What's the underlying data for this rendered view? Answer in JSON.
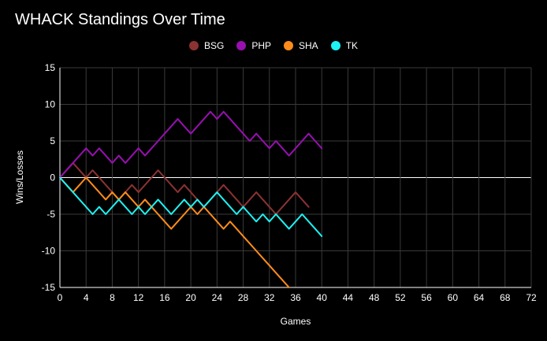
{
  "chart_data": {
    "type": "line",
    "title": "WHACK Standings Over Time",
    "xlabel": "Games",
    "ylabel": "Wins/Losses",
    "xlim": [
      0,
      72
    ],
    "ylim": [
      -15,
      15
    ],
    "xticks": [
      0,
      4,
      8,
      12,
      16,
      20,
      24,
      28,
      32,
      36,
      40,
      44,
      48,
      52,
      56,
      60,
      64,
      68,
      72
    ],
    "yticks": [
      -15,
      -10,
      -5,
      0,
      5,
      10,
      15
    ],
    "legend_position": "top-center",
    "series": [
      {
        "name": "BSG",
        "color": "#8b3232",
        "values": [
          0,
          1,
          2,
          1,
          0,
          1,
          0,
          -1,
          -2,
          -3,
          -2,
          -1,
          -2,
          -1,
          0,
          1,
          0,
          -1,
          -2,
          -1,
          -2,
          -3,
          -4,
          -3,
          -2,
          -1,
          -2,
          -3,
          -4,
          -3,
          -2,
          -3,
          -4,
          -5,
          -4,
          -3,
          -2,
          -3,
          -4
        ]
      },
      {
        "name": "PHP",
        "color": "#9810b0",
        "values": [
          0,
          1,
          2,
          3,
          4,
          3,
          4,
          3,
          2,
          3,
          2,
          3,
          4,
          3,
          4,
          5,
          6,
          7,
          8,
          7,
          6,
          7,
          8,
          9,
          8,
          9,
          8,
          7,
          6,
          5,
          6,
          5,
          4,
          5,
          4,
          3,
          4,
          5,
          6,
          5,
          4
        ]
      },
      {
        "name": "SHA",
        "color": "#ff8c1a",
        "values": [
          0,
          -1,
          -2,
          -1,
          0,
          -1,
          -2,
          -3,
          -2,
          -3,
          -2,
          -3,
          -4,
          -3,
          -4,
          -5,
          -6,
          -7,
          -6,
          -5,
          -4,
          -5,
          -4,
          -5,
          -6,
          -7,
          -6,
          -7,
          -8,
          -9,
          -10,
          -11,
          -12,
          -13,
          -14,
          -15
        ]
      },
      {
        "name": "TK",
        "color": "#1ef2f2",
        "values": [
          0,
          -1,
          -2,
          -3,
          -4,
          -5,
          -4,
          -5,
          -4,
          -3,
          -4,
          -5,
          -4,
          -5,
          -4,
          -3,
          -4,
          -5,
          -4,
          -3,
          -4,
          -3,
          -4,
          -3,
          -2,
          -3,
          -4,
          -5,
          -4,
          -5,
          -6,
          -5,
          -6,
          -5,
          -6,
          -7,
          -6,
          -5,
          -6,
          -7,
          -8
        ]
      }
    ]
  }
}
